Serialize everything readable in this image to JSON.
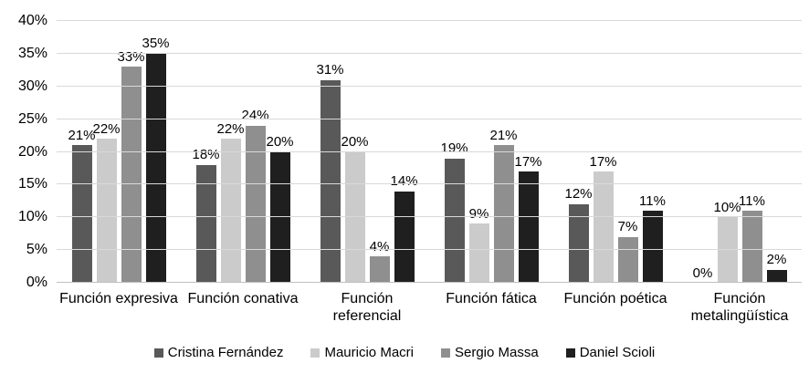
{
  "chart_data": {
    "type": "bar",
    "title": "",
    "xlabel": "",
    "ylabel": "",
    "categories": [
      "Función expresiva",
      "Función conativa",
      "Función referencial",
      "Función fática",
      "Función poética",
      "Función metalingüística"
    ],
    "series": [
      {
        "name": "Cristina Fernández",
        "color": "#595959",
        "values": [
          21,
          18,
          31,
          19,
          12,
          0
        ]
      },
      {
        "name": "Mauricio Macri",
        "color": "#cbcbcb",
        "values": [
          22,
          22,
          20,
          9,
          17,
          10
        ]
      },
      {
        "name": "Sergio Massa",
        "color": "#8f8f8f",
        "values": [
          33,
          24,
          4,
          21,
          7,
          11
        ]
      },
      {
        "name": "Daniel Scioli",
        "color": "#1f1f1f",
        "values": [
          35,
          20,
          14,
          17,
          11,
          2
        ]
      }
    ],
    "data_labels": [
      [
        "21%",
        "18%",
        "31%",
        "19%",
        "12%",
        "0%"
      ],
      [
        "22%",
        "22%",
        "20%",
        "9%",
        "17%",
        "10%"
      ],
      [
        "33%",
        "24%",
        "4%",
        "21%",
        "7%",
        "11%"
      ],
      [
        "35%",
        "20%",
        "14%",
        "17%",
        "11%",
        "2%"
      ]
    ],
    "ylim": [
      0,
      40
    ],
    "ytick_step": 5,
    "ytick_labels": [
      "0%",
      "5%",
      "10%",
      "15%",
      "20%",
      "25%",
      "30%",
      "35%",
      "40%"
    ],
    "grid": true,
    "legend_position": "bottom",
    "colors": {
      "gridline": "#d9d9d9",
      "axis_line": "#bfbfbf",
      "text": "#000000",
      "background": "#ffffff"
    }
  }
}
